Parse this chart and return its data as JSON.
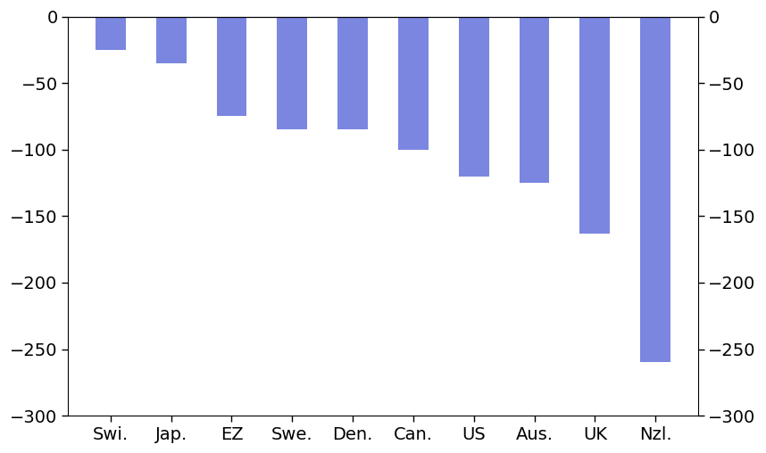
{
  "categories": [
    "Swi.",
    "Jap.",
    "EZ",
    "Swe.",
    "Den.",
    "Can.",
    "US",
    "Aus.",
    "UK",
    "Nzl."
  ],
  "values": [
    -25,
    -35,
    -75,
    -85,
    -85,
    -100,
    -120,
    -125,
    -163,
    -260
  ],
  "bar_color": "#7b86e0",
  "ylim": [
    -300,
    0
  ],
  "yticks": [
    0,
    -50,
    -100,
    -150,
    -200,
    -250,
    -300
  ],
  "background_color": "#ffffff",
  "bar_width": 0.5,
  "tick_fontsize": 14,
  "figsize": [
    8.58,
    5.08
  ],
  "dpi": 100
}
